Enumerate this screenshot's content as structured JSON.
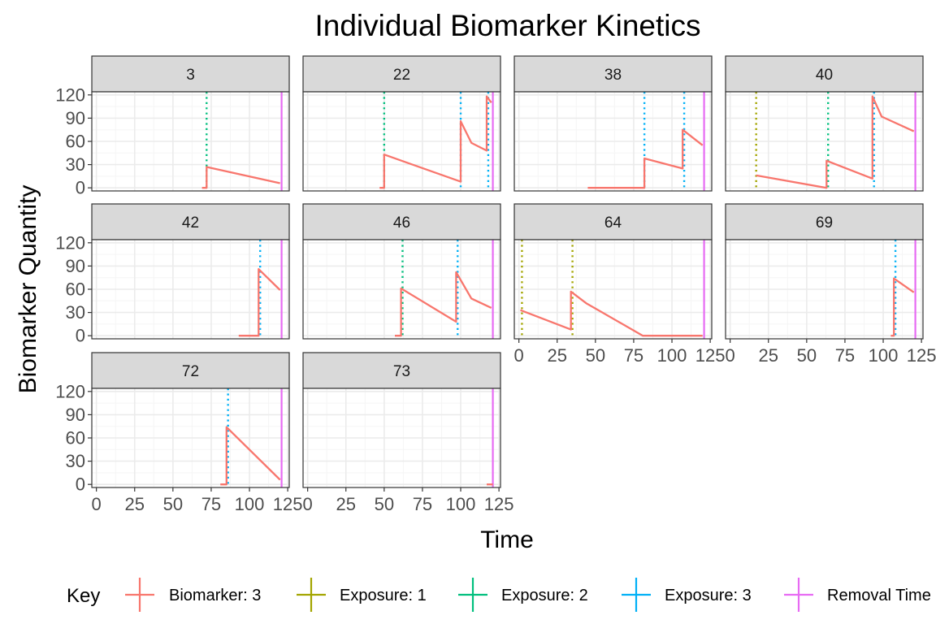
{
  "colors": {
    "biomarker": "#F8766D",
    "exposure1": "#A3A500",
    "exposure2": "#00BF7D",
    "exposure3": "#00B0F6",
    "removal": "#E76BF3",
    "strip_bg": "#D9D9D9",
    "panel_border": "#333333",
    "grid_major": "#EBEBEB",
    "grid_minor": "#F5F5F5"
  },
  "chart_data": {
    "type": "line",
    "title": "Individual Biomarker Kinetics",
    "xlabel": "Time",
    "ylabel": "Biomarker Quantity",
    "xlim": [
      -3,
      126
    ],
    "ylim": [
      -4,
      124
    ],
    "x_ticks": [
      0,
      25,
      50,
      75,
      100,
      125
    ],
    "y_ticks": [
      0,
      30,
      60,
      90,
      120
    ],
    "grid": true,
    "legend": {
      "title": "Key",
      "placement": "bottom",
      "entries": [
        {
          "label": "Biomarker: 3",
          "color_key": "biomarker"
        },
        {
          "label": "Exposure: 1",
          "color_key": "exposure1"
        },
        {
          "label": "Exposure: 2",
          "color_key": "exposure2"
        },
        {
          "label": "Exposure: 3",
          "color_key": "exposure3"
        },
        {
          "label": "Removal Time",
          "color_key": "removal"
        }
      ]
    },
    "panels": [
      {
        "id": "3",
        "row": 0,
        "col": 0,
        "x_axis": false,
        "biomarker": [
          [
            69,
            0
          ],
          [
            72,
            0
          ],
          [
            72,
            27
          ],
          [
            120,
            6
          ]
        ],
        "exposure1": [],
        "exposure2": [
          72
        ],
        "exposure3": [],
        "removal": 121
      },
      {
        "id": "22",
        "row": 0,
        "col": 1,
        "x_axis": false,
        "biomarker": [
          [
            47,
            0
          ],
          [
            50,
            0
          ],
          [
            50,
            43
          ],
          [
            100,
            8
          ],
          [
            100,
            86
          ],
          [
            107,
            58
          ],
          [
            117,
            48
          ],
          [
            117,
            118
          ],
          [
            120,
            110
          ]
        ],
        "exposure1": [],
        "exposure2": [
          50
        ],
        "exposure3": [
          100,
          118
        ],
        "removal": 121
      },
      {
        "id": "38",
        "row": 0,
        "col": 2,
        "x_axis": false,
        "biomarker": [
          [
            45,
            0
          ],
          [
            82,
            0
          ],
          [
            82,
            38
          ],
          [
            107,
            25
          ],
          [
            107,
            75
          ],
          [
            120,
            55
          ]
        ],
        "exposure1": [],
        "exposure2": [],
        "exposure3": [
          82,
          108
        ],
        "removal": 121
      },
      {
        "id": "40",
        "row": 0,
        "col": 3,
        "x_axis": false,
        "biomarker": [
          [
            17,
            16
          ],
          [
            63,
            0
          ],
          [
            63,
            35
          ],
          [
            93,
            12
          ],
          [
            93,
            118
          ],
          [
            99,
            92
          ],
          [
            120,
            73
          ]
        ],
        "exposure1": [
          17
        ],
        "exposure2": [
          64
        ],
        "exposure3": [
          94
        ],
        "removal": 121
      },
      {
        "id": "42",
        "row": 1,
        "col": 0,
        "x_axis": false,
        "biomarker": [
          [
            93,
            0
          ],
          [
            106,
            0
          ],
          [
            106,
            86
          ],
          [
            120,
            59
          ]
        ],
        "exposure1": [],
        "exposure2": [],
        "exposure3": [
          107
        ],
        "removal": 121
      },
      {
        "id": "46",
        "row": 1,
        "col": 1,
        "x_axis": false,
        "biomarker": [
          [
            57,
            0
          ],
          [
            61,
            0
          ],
          [
            61,
            61
          ],
          [
            97,
            18
          ],
          [
            97,
            82
          ],
          [
            107,
            48
          ],
          [
            120,
            36
          ]
        ],
        "exposure1": [],
        "exposure2": [
          62
        ],
        "exposure3": [
          98
        ],
        "removal": 121
      },
      {
        "id": "64",
        "row": 1,
        "col": 2,
        "x_axis": true,
        "biomarker": [
          [
            1,
            33
          ],
          [
            34,
            8
          ],
          [
            34,
            57
          ],
          [
            44,
            42
          ],
          [
            81,
            0
          ],
          [
            120,
            0
          ]
        ],
        "exposure1": [
          2,
          35
        ],
        "exposure2": [],
        "exposure3": [],
        "removal": 121
      },
      {
        "id": "69",
        "row": 1,
        "col": 3,
        "x_axis": true,
        "biomarker": [
          [
            105,
            0
          ],
          [
            107,
            0
          ],
          [
            107,
            74
          ],
          [
            120,
            56
          ]
        ],
        "exposure1": [],
        "exposure2": [],
        "exposure3": [
          108
        ],
        "removal": 121
      },
      {
        "id": "72",
        "row": 2,
        "col": 0,
        "x_axis": true,
        "biomarker": [
          [
            81,
            0
          ],
          [
            85,
            0
          ],
          [
            85,
            74
          ],
          [
            120,
            6
          ]
        ],
        "exposure1": [],
        "exposure2": [],
        "exposure3": [
          86
        ],
        "removal": 121
      },
      {
        "id": "73",
        "row": 2,
        "col": 1,
        "x_axis": true,
        "biomarker": [
          [
            117,
            0
          ],
          [
            121,
            0
          ]
        ],
        "exposure1": [],
        "exposure2": [],
        "exposure3": [],
        "removal": 121
      }
    ]
  }
}
